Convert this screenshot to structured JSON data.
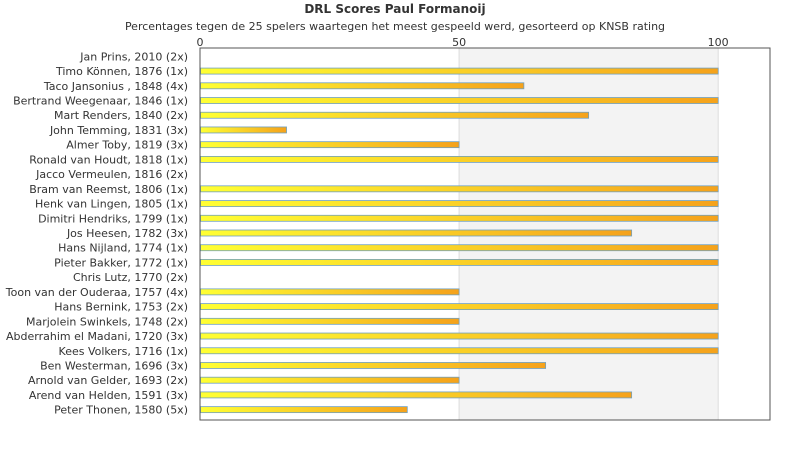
{
  "chart_data": {
    "type": "bar",
    "orientation": "horizontal",
    "title": "DRL Scores Paul Formanoij",
    "subtitle": "Percentages tegen de 25 spelers waartegen het meest gespeeld werd, gesorteerd op KNSB rating",
    "xlim": [
      0,
      110
    ],
    "x_ticks": [
      0,
      50,
      100
    ],
    "categories": [
      "Jan Prins, 2010 (2x)",
      "Timo Können, 1876 (1x)",
      "Taco Jansonius , 1848 (4x)",
      "Bertrand Weegenaar, 1846 (1x)",
      "Mart Renders, 1840 (2x)",
      "John Temming, 1831 (3x)",
      "Almer Toby, 1819 (3x)",
      "Ronald van Houdt, 1818 (1x)",
      "Jacco Vermeulen, 1816 (2x)",
      "Bram van Reemst, 1806 (1x)",
      "Henk van Lingen, 1805 (1x)",
      "Dimitri Hendriks, 1799 (1x)",
      "Jos Heesen, 1782 (3x)",
      "Hans Nijland, 1774 (1x)",
      "Pieter Bakker, 1772 (1x)",
      "Chris Lutz, 1770 (2x)",
      "Toon van der Ouderaa, 1757 (4x)",
      "Hans Bernink, 1753 (2x)",
      "Marjolein Swinkels, 1748 (2x)",
      "Abderrahim el Madani, 1720 (3x)",
      "Kees Volkers, 1716 (1x)",
      "Ben Westerman, 1696 (3x)",
      "Arnold van Gelder, 1693 (2x)",
      "Arend van Helden, 1591 (3x)",
      "Peter Thonen, 1580 (5x)"
    ],
    "values": [
      0,
      100,
      62.5,
      100,
      75,
      16.7,
      50,
      100,
      0,
      100,
      100,
      100,
      83.3,
      100,
      100,
      0,
      50,
      100,
      50,
      100,
      100,
      66.7,
      50,
      83.3,
      40
    ],
    "grid": true,
    "colors": {
      "bar_start": "#ffff33",
      "bar_end": "#f5a21b",
      "bar_border": "#6fa0c0",
      "band_shade": "#f3f3f3",
      "grid": "#dcdcdc",
      "axis": "#555555"
    }
  }
}
